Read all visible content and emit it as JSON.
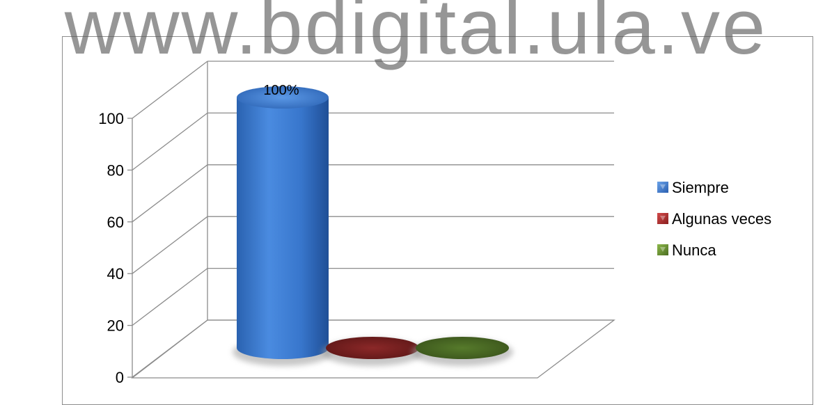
{
  "watermark": "www.bdigital.ula.ve",
  "chart_data": {
    "type": "bar",
    "style": "3d-cylinder",
    "categories": [
      ""
    ],
    "series": [
      {
        "name": "Siempre",
        "values": [
          100
        ],
        "color": "#3f7fd6",
        "data_label": "100%"
      },
      {
        "name": "Algunas veces",
        "values": [
          0
        ],
        "color": "#7a1f1f"
      },
      {
        "name": "Nunca",
        "values": [
          0
        ],
        "color": "#4a6624"
      }
    ],
    "y_ticks": [
      "0",
      "20",
      "40",
      "60",
      "80",
      "100"
    ],
    "ylim": [
      0,
      100
    ],
    "grid": true,
    "legend_position": "right",
    "title": "",
    "xlabel": "",
    "ylabel": ""
  }
}
